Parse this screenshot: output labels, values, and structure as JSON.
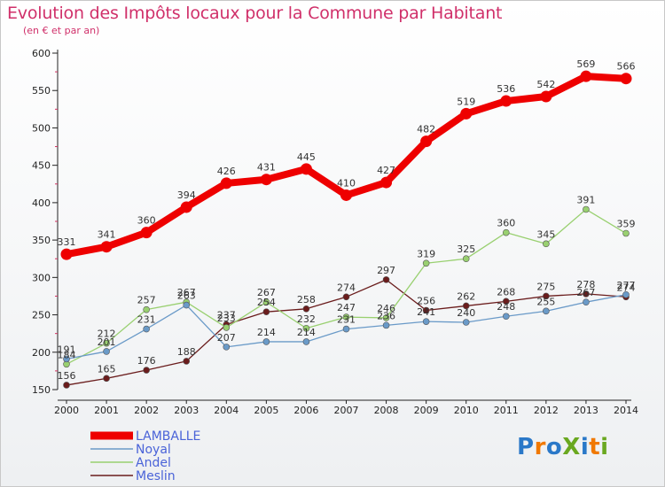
{
  "header": {
    "title": "Evolution des Impôts locaux pour la Commune par Habitant",
    "subtitle": "(en € et par an)"
  },
  "logo": {
    "text": "ProXiti",
    "colors": [
      "#2a78c8",
      "#f07800",
      "#2a78c8",
      "#6aa820",
      "#2a78c8",
      "#f07800",
      "#6aa820"
    ]
  },
  "chart_data": {
    "type": "line",
    "title": "Evolution des Impôts locaux pour la Commune par Habitant",
    "subtitle": "(en € et par an)",
    "x": [
      "2000",
      "2001",
      "2002",
      "2003",
      "2004",
      "2005",
      "2006",
      "2007",
      "2008",
      "2009",
      "2010",
      "2011",
      "2012",
      "2013",
      "2014"
    ],
    "ylim": [
      150,
      600
    ],
    "yticks": [
      "150",
      "200",
      "250",
      "300",
      "350",
      "400",
      "450",
      "500",
      "550",
      "600"
    ],
    "grid": false,
    "legend_position": "bottom-left",
    "series": [
      {
        "name": "LAMBALLE",
        "color": "#ee0000",
        "values": [
          331,
          341,
          360,
          394,
          426,
          431,
          445,
          410,
          427,
          482,
          519,
          536,
          542,
          569,
          566
        ],
        "labels": [
          "331",
          "341",
          "360",
          "394",
          "426",
          "431",
          "445",
          "410",
          "427",
          "482",
          "519",
          "536",
          "542",
          "569",
          "566"
        ]
      },
      {
        "name": "Noyal",
        "color": "#6a9ac8",
        "values": [
          191,
          201,
          231,
          263,
          207,
          214,
          214,
          231,
          236,
          241,
          240,
          248,
          255,
          267,
          277
        ],
        "labels": [
          "191",
          "201",
          "231",
          "263",
          "207",
          "214",
          "214",
          "231",
          "236",
          "241",
          "240",
          "248",
          "255",
          "267",
          "277"
        ]
      },
      {
        "name": "Andel",
        "color": "#99d070",
        "values": [
          184,
          212,
          257,
          267,
          233,
          267,
          232,
          247,
          246,
          319,
          325,
          360,
          345,
          391,
          359
        ],
        "labels": [
          "184",
          "212",
          "257",
          "267",
          "233",
          "267",
          "232",
          "247",
          "246",
          "319",
          "325",
          "360",
          "345",
          "391",
          "359"
        ]
      },
      {
        "name": "Meslin",
        "color": "#6a1c1c",
        "values": [
          156,
          165,
          176,
          188,
          237,
          254,
          258,
          274,
          297,
          256,
          262,
          268,
          275,
          278,
          274
        ],
        "labels": [
          "156",
          "165",
          "176",
          "188",
          "237",
          "254",
          "258",
          "274",
          "297",
          "256",
          "262",
          "268",
          "275",
          "278",
          "274"
        ]
      }
    ]
  }
}
